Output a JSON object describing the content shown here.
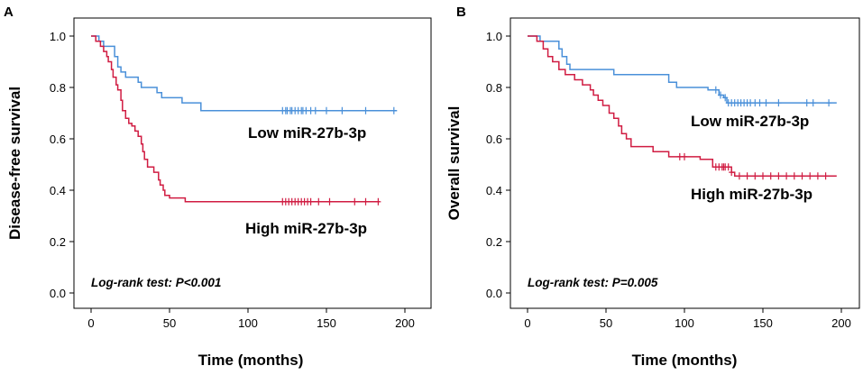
{
  "chart_data": [
    {
      "type": "line",
      "subtype": "kaplan-meier",
      "panel": "A",
      "xlabel": "Time (months)",
      "ylabel": "Disease-free survival",
      "xlim": [
        0,
        200
      ],
      "ylim": [
        0,
        1.0
      ],
      "xticks": [
        "0",
        "50",
        "100",
        "150",
        "200"
      ],
      "yticks": [
        "0.0",
        "0.2",
        "0.4",
        "0.6",
        "0.8",
        "1.0"
      ],
      "annotation": "Log-rank test: P<0.001",
      "series": [
        {
          "name": "Low miR-27b-3p",
          "color": "#4a90d9",
          "steps": [
            [
              0,
              1.0
            ],
            [
              5,
              0.98
            ],
            [
              8,
              0.96
            ],
            [
              15,
              0.92
            ],
            [
              17,
              0.88
            ],
            [
              19,
              0.86
            ],
            [
              22,
              0.84
            ],
            [
              30,
              0.82
            ],
            [
              32,
              0.8
            ],
            [
              42,
              0.78
            ],
            [
              45,
              0.76
            ],
            [
              58,
              0.74
            ],
            [
              70,
              0.71
            ],
            [
              195,
              0.71
            ]
          ],
          "censored": [
            122,
            124,
            125,
            127,
            128,
            130,
            132,
            134,
            135,
            137,
            140,
            143,
            150,
            160,
            175,
            193
          ]
        },
        {
          "name": "High miR-27b-3p",
          "color": "#d01c42",
          "steps": [
            [
              0,
              1.0
            ],
            [
              3,
              0.98
            ],
            [
              6,
              0.96
            ],
            [
              8,
              0.94
            ],
            [
              10,
              0.92
            ],
            [
              11,
              0.9
            ],
            [
              13,
              0.87
            ],
            [
              14,
              0.84
            ],
            [
              16,
              0.81
            ],
            [
              17,
              0.79
            ],
            [
              19,
              0.75
            ],
            [
              20,
              0.71
            ],
            [
              22,
              0.68
            ],
            [
              24,
              0.66
            ],
            [
              26,
              0.65
            ],
            [
              28,
              0.63
            ],
            [
              30,
              0.61
            ],
            [
              32,
              0.58
            ],
            [
              33,
              0.55
            ],
            [
              34,
              0.52
            ],
            [
              36,
              0.49
            ],
            [
              40,
              0.47
            ],
            [
              43,
              0.44
            ],
            [
              44,
              0.42
            ],
            [
              46,
              0.4
            ],
            [
              47,
              0.38
            ],
            [
              50,
              0.37
            ],
            [
              60,
              0.355
            ],
            [
              184,
              0.355
            ]
          ],
          "censored": [
            122,
            124,
            126,
            128,
            130,
            132,
            134,
            136,
            138,
            140,
            145,
            152,
            168,
            175,
            183
          ]
        }
      ]
    },
    {
      "type": "line",
      "subtype": "kaplan-meier",
      "panel": "B",
      "xlabel": "Time (months)",
      "ylabel": "Overall survival",
      "xlim": [
        0,
        200
      ],
      "ylim": [
        0,
        1.0
      ],
      "xticks": [
        "0",
        "50",
        "100",
        "150",
        "200"
      ],
      "yticks": [
        "0.0",
        "0.2",
        "0.4",
        "0.6",
        "0.8",
        "1.0"
      ],
      "annotation": "Log-rank test: P=0.005",
      "series": [
        {
          "name": "Low miR-27b-3p",
          "color": "#4a90d9",
          "steps": [
            [
              0,
              1.0
            ],
            [
              8,
              0.98
            ],
            [
              20,
              0.95
            ],
            [
              22,
              0.92
            ],
            [
              25,
              0.89
            ],
            [
              27,
              0.87
            ],
            [
              55,
              0.85
            ],
            [
              90,
              0.82
            ],
            [
              95,
              0.8
            ],
            [
              115,
              0.79
            ],
            [
              122,
              0.77
            ],
            [
              125,
              0.76
            ],
            [
              127,
              0.74
            ],
            [
              197,
              0.74
            ]
          ],
          "censored": [
            120,
            123,
            126,
            128,
            130,
            132,
            134,
            136,
            138,
            140,
            142,
            145,
            148,
            152,
            160,
            178,
            182,
            192
          ]
        },
        {
          "name": "High miR-27b-3p",
          "color": "#d01c42",
          "steps": [
            [
              0,
              1.0
            ],
            [
              6,
              0.98
            ],
            [
              10,
              0.95
            ],
            [
              13,
              0.92
            ],
            [
              16,
              0.9
            ],
            [
              20,
              0.87
            ],
            [
              24,
              0.85
            ],
            [
              30,
              0.83
            ],
            [
              35,
              0.81
            ],
            [
              40,
              0.79
            ],
            [
              42,
              0.77
            ],
            [
              45,
              0.75
            ],
            [
              48,
              0.73
            ],
            [
              52,
              0.7
            ],
            [
              55,
              0.68
            ],
            [
              58,
              0.65
            ],
            [
              60,
              0.62
            ],
            [
              63,
              0.6
            ],
            [
              66,
              0.57
            ],
            [
              80,
              0.55
            ],
            [
              90,
              0.53
            ],
            [
              110,
              0.52
            ],
            [
              118,
              0.49
            ],
            [
              130,
              0.47
            ],
            [
              132,
              0.455
            ],
            [
              197,
              0.455
            ]
          ],
          "censored": [
            97,
            100,
            120,
            122,
            124,
            125,
            126,
            128,
            130,
            135,
            140,
            145,
            150,
            155,
            160,
            165,
            170,
            175,
            180,
            185,
            190
          ]
        }
      ]
    }
  ]
}
